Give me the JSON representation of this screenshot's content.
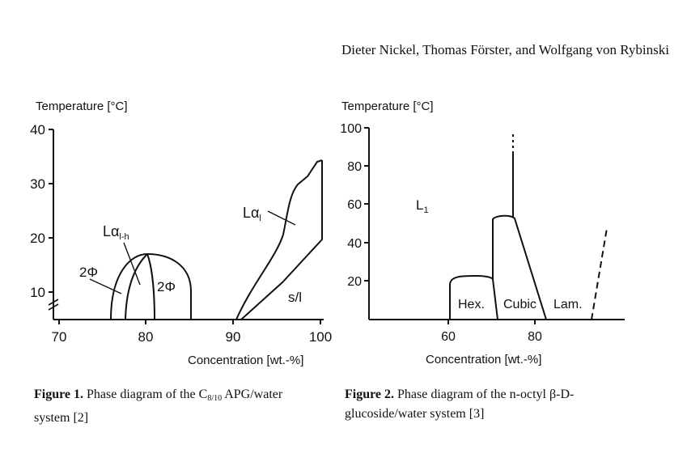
{
  "header": {
    "authors": "Dieter Nickel, Thomas Förster, and Wolfgang von Rybinski"
  },
  "figure1": {
    "ylabel": "Temperature [°C]",
    "xlabel": "Concentration [wt.-%]",
    "x_ticks": [
      "70",
      "80",
      "90",
      "100"
    ],
    "y_ticks": [
      "40",
      "30",
      "20",
      "10"
    ],
    "labels": {
      "two_phase_left": "2Φ",
      "two_phase_right": "2Φ",
      "l_alpha_base": "L",
      "l_alpha_lh_base": "α",
      "l_alpha_lh_sub": "l-h",
      "l_alpha_l_base": "α",
      "l_alpha_l_sub": "l",
      "solid_liquid": "s/l"
    },
    "caption": {
      "label": "Figure 1.",
      "text_before": " Phase diagram of the C",
      "subscript": "8/10",
      "text_after": " APG/water system [2]"
    }
  },
  "figure2": {
    "ylabel": "Temperature [°C]",
    "xlabel": "Concentration [wt.-%]",
    "x_ticks": [
      "60",
      "80"
    ],
    "y_ticks": [
      "100",
      "80",
      "60",
      "40",
      "20"
    ],
    "labels": {
      "l1_base": "L",
      "l1_sub": "1",
      "hex": "Hex.",
      "cubic": "Cubic",
      "lam": "Lam."
    },
    "caption": {
      "label": "Figure 2.",
      "text": " Phase diagram of the n-octyl β-D-glucoside/water system [3]"
    }
  }
}
